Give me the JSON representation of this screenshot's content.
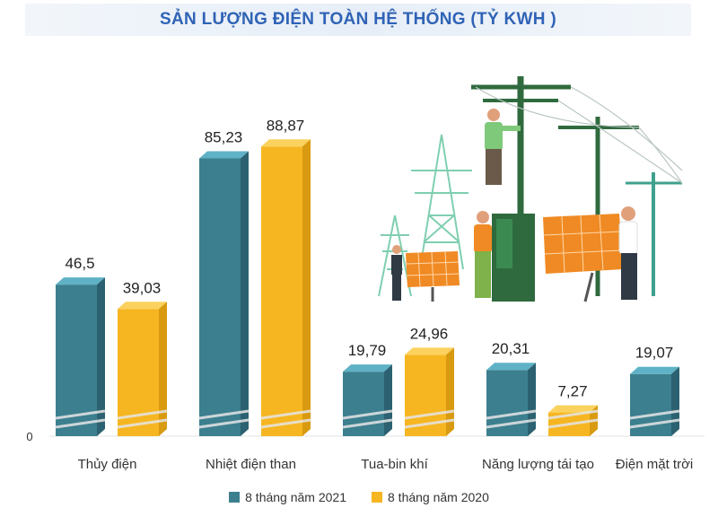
{
  "title": "SẢN LƯỢNG ĐIỆN TOÀN HỆ THỐNG (TỶ KWH )",
  "colors": {
    "series_2021": "#3c7f8f",
    "series_2021_top": "#5fb2c6",
    "series_2021_side": "#2b6170",
    "series_2020": "#f6b621",
    "series_2020_top": "#fbd25d",
    "series_2020_side": "#d89a10",
    "title": "#2f63b6"
  },
  "chart_data": {
    "type": "bar",
    "title": "SẢN LƯỢNG ĐIỆN TOÀN HỆ THỐNG (TỶ KWH )",
    "xlabel": "",
    "ylabel": "",
    "ylim": [
      0,
      95
    ],
    "y_ticks": [
      "0"
    ],
    "categories": [
      "Thủy điện",
      "Nhiệt điện than",
      "Tua-bin khí",
      "Năng lượng tái tạo",
      "Điện mặt trời"
    ],
    "series": [
      {
        "name": "8 tháng năm 2021",
        "values": [
          46.5,
          85.23,
          19.79,
          20.31,
          19.07
        ],
        "labels": [
          "46,5",
          "85,23",
          "19,79",
          "20,31",
          "19,07"
        ]
      },
      {
        "name": "8 tháng năm 2020",
        "values": [
          39.03,
          88.87,
          24.96,
          7.27,
          null
        ],
        "labels": [
          "39,03",
          "88,87",
          "24,96",
          "7,27",
          ""
        ]
      }
    ],
    "grid": false,
    "legend_position": "bottom-center"
  }
}
